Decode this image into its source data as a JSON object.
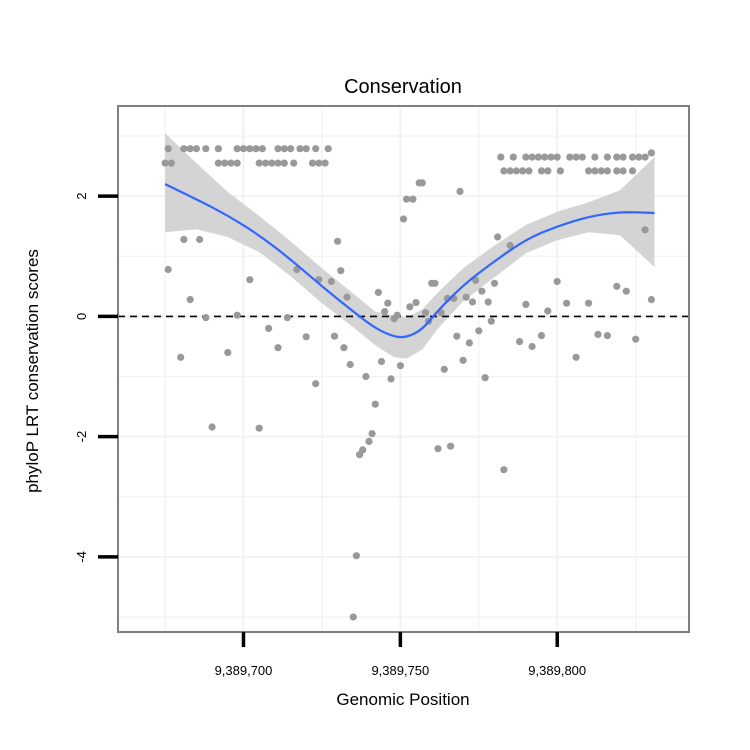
{
  "chart_data": {
    "type": "scatter",
    "title": "Conservation",
    "xlabel": "Genomic Position",
    "ylabel": "phyloP LRT conservation scores",
    "xlim": [
      9389660,
      9389842
    ],
    "ylim": [
      -5.25,
      3.5
    ],
    "x_ticks": [
      {
        "value": 9389700,
        "label": "9,389,700"
      },
      {
        "value": 9389750,
        "label": "9,389,750"
      },
      {
        "value": 9389800,
        "label": "9,389,800"
      }
    ],
    "y_ticks": [
      {
        "value": -4,
        "label": "-4"
      },
      {
        "value": -2,
        "label": "-2"
      },
      {
        "value": 0,
        "label": "0"
      },
      {
        "value": 2,
        "label": "2"
      }
    ],
    "reference_line": {
      "y": 0,
      "style": "dashed"
    },
    "grid": true,
    "colors": {
      "points": "#999999",
      "smooth_line": "#3366ff",
      "confidence_band": "#d4d4d4",
      "grid": "#f2f2f2",
      "panel_border": "#7f7f7f"
    },
    "points": [
      [
        9389676,
        2.79
      ],
      [
        9389681,
        2.79
      ],
      [
        9389683,
        2.79
      ],
      [
        9389685,
        2.79
      ],
      [
        9389688,
        2.79
      ],
      [
        9389692,
        2.79
      ],
      [
        9389698,
        2.79
      ],
      [
        9389700,
        2.79
      ],
      [
        9389702,
        2.79
      ],
      [
        9389704,
        2.79
      ],
      [
        9389706,
        2.79
      ],
      [
        9389711,
        2.79
      ],
      [
        9389713,
        2.79
      ],
      [
        9389715,
        2.79
      ],
      [
        9389718,
        2.79
      ],
      [
        9389720,
        2.79
      ],
      [
        9389723,
        2.79
      ],
      [
        9389727,
        2.79
      ],
      [
        9389675,
        2.55
      ],
      [
        9389677,
        2.55
      ],
      [
        9389692,
        2.55
      ],
      [
        9389694,
        2.55
      ],
      [
        9389696,
        2.55
      ],
      [
        9389698,
        2.55
      ],
      [
        9389705,
        2.55
      ],
      [
        9389707,
        2.55
      ],
      [
        9389709,
        2.55
      ],
      [
        9389711,
        2.55
      ],
      [
        9389713,
        2.55
      ],
      [
        9389716,
        2.55
      ],
      [
        9389722,
        2.55
      ],
      [
        9389724,
        2.55
      ],
      [
        9389726,
        2.55
      ],
      [
        9389676,
        0.78
      ],
      [
        9389680,
        -0.68
      ],
      [
        9389681,
        1.28
      ],
      [
        9389683,
        0.28
      ],
      [
        9389686,
        1.28
      ],
      [
        9389688,
        -0.02
      ],
      [
        9389690,
        -1.84
      ],
      [
        9389695,
        -0.6
      ],
      [
        9389698,
        0.02
      ],
      [
        9389702,
        0.61
      ],
      [
        9389705,
        -1.86
      ],
      [
        9389708,
        -0.2
      ],
      [
        9389711,
        -0.52
      ],
      [
        9389714,
        -0.02
      ],
      [
        9389717,
        0.78
      ],
      [
        9389720,
        -0.34
      ],
      [
        9389723,
        -1.12
      ],
      [
        9389724,
        0.61
      ],
      [
        9389728,
        0.58
      ],
      [
        9389729,
        -0.33
      ],
      [
        9389730,
        1.25
      ],
      [
        9389731,
        0.76
      ],
      [
        9389732,
        -0.52
      ],
      [
        9389733,
        0.32
      ],
      [
        9389734,
        -0.8
      ],
      [
        9389735,
        -5.0
      ],
      [
        9389736,
        -3.98
      ],
      [
        9389737,
        -2.3
      ],
      [
        9389738,
        -2.22
      ],
      [
        9389739,
        -1.0
      ],
      [
        9389740,
        -2.08
      ],
      [
        9389741,
        -1.95
      ],
      [
        9389742,
        -1.46
      ],
      [
        9389743,
        0.4
      ],
      [
        9389744,
        -0.75
      ],
      [
        9389745,
        0.08
      ],
      [
        9389746,
        0.22
      ],
      [
        9389747,
        -1.04
      ],
      [
        9389748,
        -0.04
      ],
      [
        9389749,
        0.02
      ],
      [
        9389750,
        -0.82
      ],
      [
        9389751,
        1.62
      ],
      [
        9389752,
        1.95
      ],
      [
        9389753,
        0.16
      ],
      [
        9389754,
        1.95
      ],
      [
        9389755,
        0.23
      ],
      [
        9389756,
        2.22
      ],
      [
        9389757,
        2.22
      ],
      [
        9389758,
        0.06
      ],
      [
        9389759,
        -0.08
      ],
      [
        9389760,
        0.55
      ],
      [
        9389761,
        0.55
      ],
      [
        9389762,
        -2.2
      ],
      [
        9389763,
        0.06
      ],
      [
        9389764,
        -0.88
      ],
      [
        9389765,
        0.3
      ],
      [
        9389766,
        -2.16
      ],
      [
        9389767,
        0.3
      ],
      [
        9389768,
        -0.33
      ],
      [
        9389769,
        2.08
      ],
      [
        9389770,
        -0.73
      ],
      [
        9389771,
        0.32
      ],
      [
        9389772,
        -0.44
      ],
      [
        9389773,
        0.24
      ],
      [
        9389774,
        0.6
      ],
      [
        9389775,
        -0.24
      ],
      [
        9389776,
        0.42
      ],
      [
        9389777,
        -1.02
      ],
      [
        9389778,
        0.24
      ],
      [
        9389779,
        -0.08
      ],
      [
        9389780,
        0.55
      ],
      [
        9389781,
        1.32
      ],
      [
        9389783,
        -2.55
      ],
      [
        9389785,
        1.18
      ],
      [
        9389788,
        -0.42
      ],
      [
        9389790,
        0.2
      ],
      [
        9389792,
        -0.5
      ],
      [
        9389795,
        -0.32
      ],
      [
        9389797,
        0.09
      ],
      [
        9389800,
        0.58
      ],
      [
        9389803,
        0.22
      ],
      [
        9389806,
        -0.68
      ],
      [
        9389810,
        0.22
      ],
      [
        9389813,
        -0.3
      ],
      [
        9389816,
        -0.32
      ],
      [
        9389819,
        0.5
      ],
      [
        9389822,
        0.42
      ],
      [
        9389825,
        -0.38
      ],
      [
        9389828,
        1.44
      ],
      [
        9389830,
        0.28
      ],
      [
        9389782,
        2.65
      ],
      [
        9389786,
        2.65
      ],
      [
        9389790,
        2.65
      ],
      [
        9389792,
        2.65
      ],
      [
        9389794,
        2.65
      ],
      [
        9389796,
        2.65
      ],
      [
        9389798,
        2.65
      ],
      [
        9389800,
        2.65
      ],
      [
        9389804,
        2.65
      ],
      [
        9389806,
        2.65
      ],
      [
        9389808,
        2.65
      ],
      [
        9389812,
        2.65
      ],
      [
        9389816,
        2.65
      ],
      [
        9389819,
        2.65
      ],
      [
        9389821,
        2.65
      ],
      [
        9389824,
        2.65
      ],
      [
        9389826,
        2.65
      ],
      [
        9389828,
        2.65
      ],
      [
        9389830,
        2.72
      ],
      [
        9389783,
        2.42
      ],
      [
        9389785,
        2.42
      ],
      [
        9389787,
        2.42
      ],
      [
        9389789,
        2.42
      ],
      [
        9389791,
        2.42
      ],
      [
        9389795,
        2.42
      ],
      [
        9389797,
        2.42
      ],
      [
        9389801,
        2.42
      ],
      [
        9389810,
        2.42
      ],
      [
        9389812,
        2.42
      ],
      [
        9389814,
        2.42
      ],
      [
        9389816,
        2.42
      ],
      [
        9389819,
        2.42
      ],
      [
        9389821,
        2.42
      ],
      [
        9389824,
        2.42
      ]
    ],
    "smooth_curve": [
      [
        9389675,
        2.2
      ],
      [
        9389685,
        1.95
      ],
      [
        9389695,
        1.68
      ],
      [
        9389705,
        1.35
      ],
      [
        9389715,
        0.95
      ],
      [
        9389725,
        0.5
      ],
      [
        9389735,
        0.08
      ],
      [
        9389742,
        -0.2
      ],
      [
        9389748,
        -0.34
      ],
      [
        9389752,
        -0.35
      ],
      [
        9389757,
        -0.22
      ],
      [
        9389762,
        0.1
      ],
      [
        9389770,
        0.52
      ],
      [
        9389780,
        0.92
      ],
      [
        9389790,
        1.28
      ],
      [
        9389800,
        1.5
      ],
      [
        9389810,
        1.66
      ],
      [
        9389820,
        1.74
      ],
      [
        9389831,
        1.72
      ]
    ],
    "confidence_band": [
      [
        9389675,
        1.4,
        3.05
      ],
      [
        9389685,
        1.45,
        2.55
      ],
      [
        9389695,
        1.32,
        2.07
      ],
      [
        9389705,
        1.07,
        1.67
      ],
      [
        9389715,
        0.67,
        1.25
      ],
      [
        9389725,
        0.22,
        0.8
      ],
      [
        9389735,
        -0.18,
        0.38
      ],
      [
        9389742,
        -0.48,
        0.08
      ],
      [
        9389748,
        -0.68,
        0.02
      ],
      [
        9389752,
        -0.7,
        -0.02
      ],
      [
        9389757,
        -0.55,
        0.12
      ],
      [
        9389762,
        -0.2,
        0.4
      ],
      [
        9389770,
        0.25,
        0.8
      ],
      [
        9389780,
        0.65,
        1.18
      ],
      [
        9389790,
        1.05,
        1.52
      ],
      [
        9389800,
        1.27,
        1.74
      ],
      [
        9389810,
        1.4,
        1.9
      ],
      [
        9389820,
        1.35,
        2.1
      ],
      [
        9389831,
        0.82,
        2.65
      ]
    ]
  }
}
